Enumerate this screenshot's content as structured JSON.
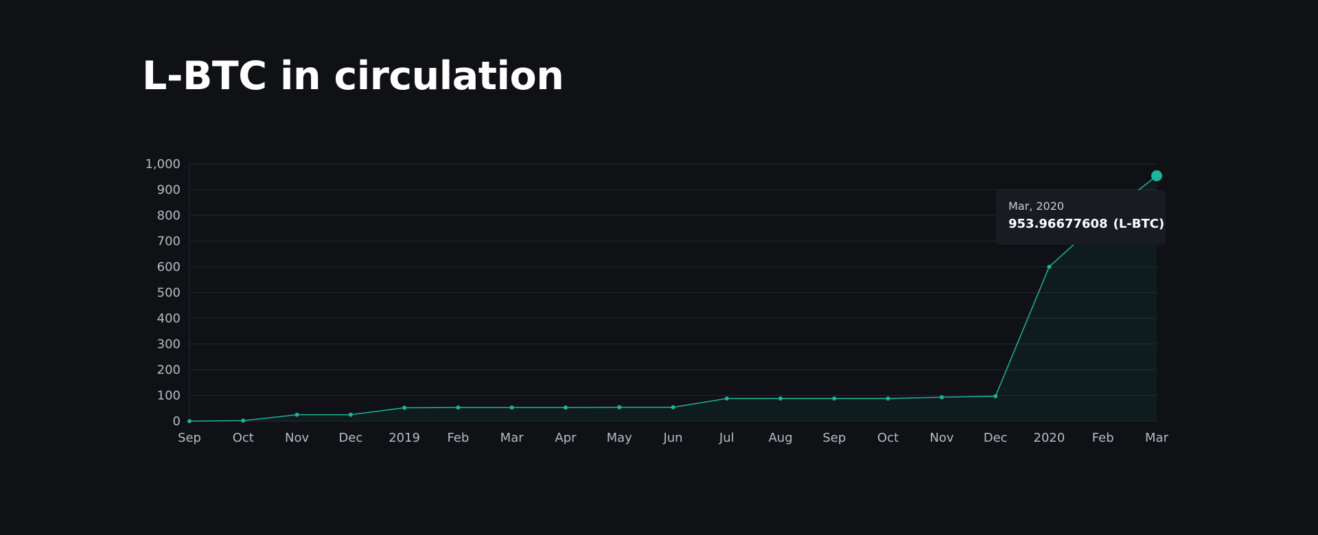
{
  "page": {
    "title": "L-BTC in circulation"
  },
  "colors": {
    "background": "#0f1115",
    "line": "#1fb39a",
    "grid": "#23272e",
    "tick_text": "#b8bcc3",
    "tooltip_bg": "#181b22"
  },
  "tooltip": {
    "date": "Mar, 2020",
    "value": "953.96677608",
    "unit": "(L-BTC)"
  },
  "chart_data": {
    "type": "area",
    "title": "L-BTC in circulation",
    "xlabel": "",
    "ylabel": "",
    "categories": [
      "Sep",
      "Oct",
      "Nov",
      "Dec",
      "2019",
      "Feb",
      "Mar",
      "Apr",
      "May",
      "Jun",
      "Jul",
      "Aug",
      "Sep",
      "Oct",
      "Nov",
      "Dec",
      "2020",
      "Feb",
      "Mar"
    ],
    "series": [
      {
        "values": [
          0,
          2,
          25,
          25,
          52,
          53,
          53,
          53,
          54,
          54,
          88,
          88,
          88,
          88,
          93,
          97,
          600,
          790,
          953.96677608
        ]
      }
    ],
    "ylim": [
      0,
      1000
    ],
    "yticks": [
      0,
      100,
      200,
      300,
      400,
      500,
      600,
      700,
      800,
      900,
      1000
    ],
    "ytick_labels": [
      "0",
      "100",
      "200",
      "300",
      "400",
      "500",
      "600",
      "700",
      "800",
      "900",
      "1,000"
    ],
    "grid": true,
    "highlighted_index": 18
  }
}
